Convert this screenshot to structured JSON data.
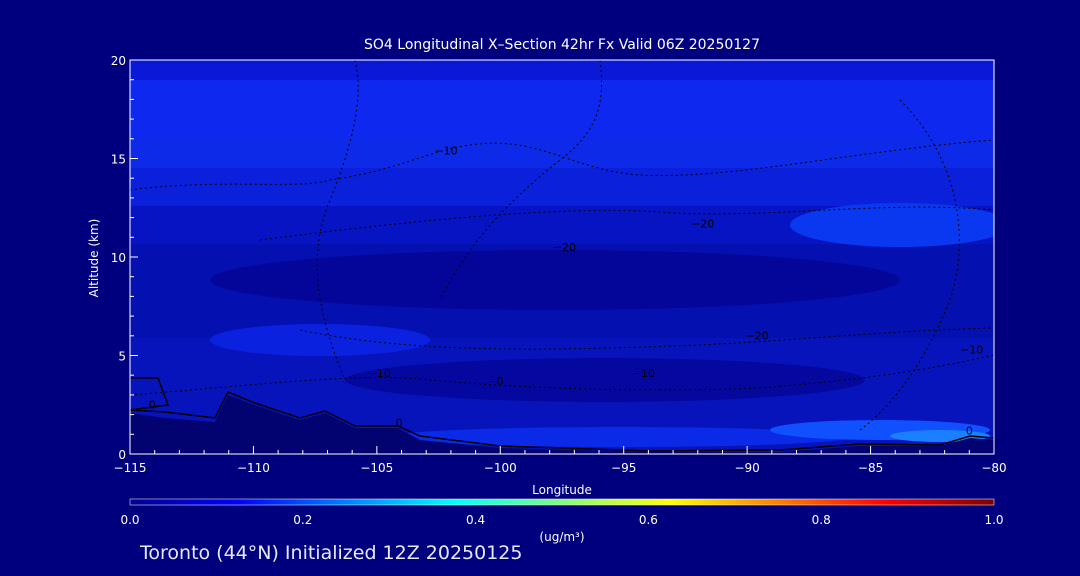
{
  "chart_data": {
    "type": "heatmap",
    "title": "SO4 Longitudinal X–Section 42hr  Fx Valid 06Z 20250127",
    "xlabel": "Longitude",
    "ylabel": "Altitude (km)",
    "xlim": [
      -115,
      -80
    ],
    "ylim": [
      0,
      20
    ],
    "x_ticks": [
      -115,
      -110,
      -105,
      -100,
      -95,
      -90,
      -85,
      -80
    ],
    "x_tick_labels": [
      "−115",
      "−110",
      "−105",
      "−100",
      "−95",
      "−90",
      "−85",
      "−80"
    ],
    "y_ticks": [
      0,
      5,
      10,
      15,
      20
    ],
    "y_tick_labels": [
      "0",
      "5",
      "10",
      "15",
      "20"
    ],
    "grid": false,
    "colorbar": {
      "min": 0.0,
      "max": 1.0,
      "ticks": [
        0.0,
        0.2,
        0.4,
        0.6,
        0.8,
        1.0
      ],
      "tick_labels": [
        "0.0",
        "0.2",
        "0.4",
        "0.6",
        "0.8",
        "1.0"
      ],
      "units_label": "(ug/m³)",
      "colors": [
        "#00008f",
        "#0000ff",
        "#0080ff",
        "#00ffff",
        "#80ff80",
        "#ffff00",
        "#ff8000",
        "#ff0000",
        "#800000"
      ]
    },
    "contour_labels": [
      {
        "text": "−10",
        "lon": -102.2,
        "alt": 15.2
      },
      {
        "text": "−20",
        "lon": -91.8,
        "alt": 11.5
      },
      {
        "text": "−20",
        "lon": -97.4,
        "alt": 10.3
      },
      {
        "text": "−20",
        "lon": -89.6,
        "alt": 5.8
      },
      {
        "text": "−10",
        "lon": -80.9,
        "alt": 5.1
      },
      {
        "text": "−10",
        "lon": -104.9,
        "alt": 3.9
      },
      {
        "text": "−0",
        "lon": -100.2,
        "alt": 3.5
      },
      {
        "text": "−10",
        "lon": -94.2,
        "alt": 3.9
      },
      {
        "text": "0",
        "lon": -114.1,
        "alt": 2.3
      },
      {
        "text": "0",
        "lon": -104.1,
        "alt": 1.4
      },
      {
        "text": "0",
        "lon": -81.0,
        "alt": 1.0
      }
    ]
  },
  "footer": {
    "text": "Toronto (44°N) Initialized 12Z 20250125"
  }
}
